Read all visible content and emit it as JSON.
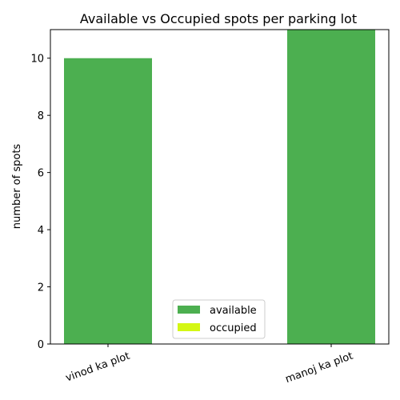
{
  "chart_data": {
    "type": "bar",
    "title": "Available vs Occupied spots per parking lot",
    "xlabel": "",
    "ylabel": "number of spots",
    "categories": [
      "vinod ka plot",
      "manoj ka plot"
    ],
    "series": [
      {
        "name": "available",
        "values": [
          10,
          11
        ],
        "color": "#4caf50"
      },
      {
        "name": "occupied",
        "values": [
          0,
          0
        ],
        "color": "#d4f714"
      }
    ],
    "ylim": [
      0,
      11
    ],
    "yticks": [
      0,
      2,
      4,
      6,
      8,
      10
    ],
    "stacked": true,
    "grid": false,
    "legend_position": "bottom-center"
  }
}
